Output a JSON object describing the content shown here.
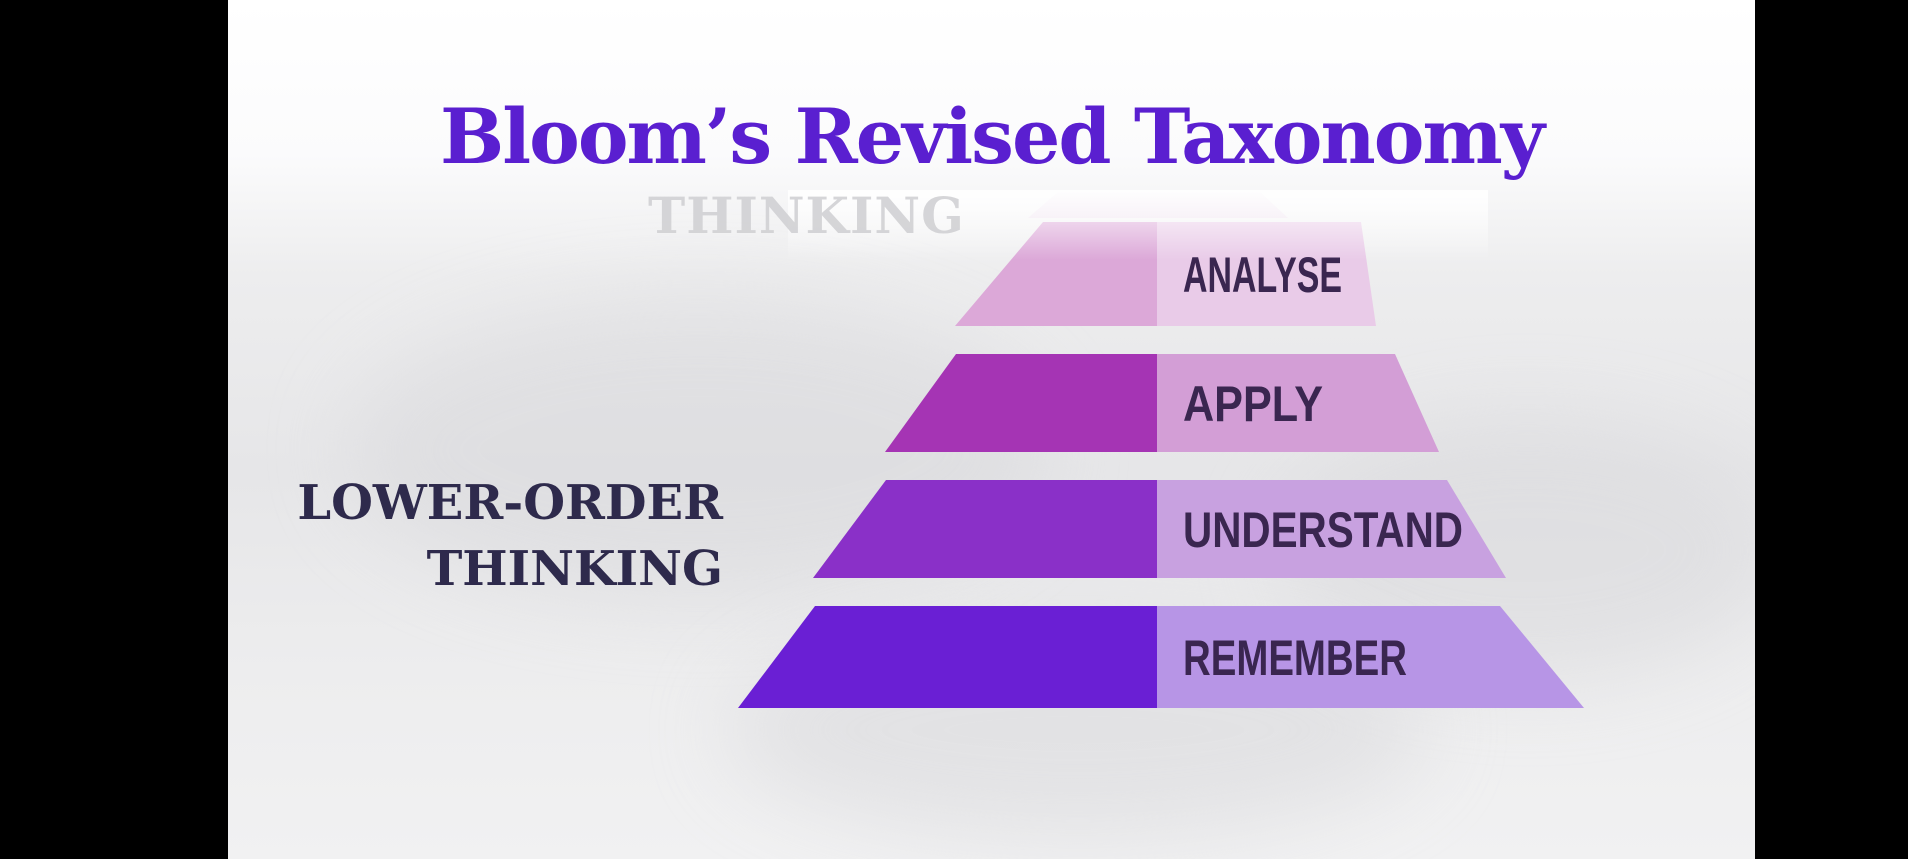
{
  "title": "Bloom’s Revised Taxonomy",
  "faded_label": "THINKING",
  "side_label": {
    "line1": "LOWER-ORDER",
    "line2": "THINKING"
  },
  "tiers": [
    {
      "label": "ANALYSE",
      "left_color": "#dca8d8",
      "right_color": "#e9cbe8",
      "text_color": "#b8a6c4"
    },
    {
      "label": "APPLY",
      "left_color": "#a534b4",
      "right_color": "#d39ed6",
      "text_color": "#3a2650"
    },
    {
      "label": "UNDERSTAND",
      "left_color": "#8a30c8",
      "right_color": "#c8a1e0",
      "text_color": "#3a2650"
    },
    {
      "label": "REMEMBER",
      "left_color": "#6a1fd4",
      "right_color": "#b795e6",
      "text_color": "#3a2650"
    }
  ]
}
